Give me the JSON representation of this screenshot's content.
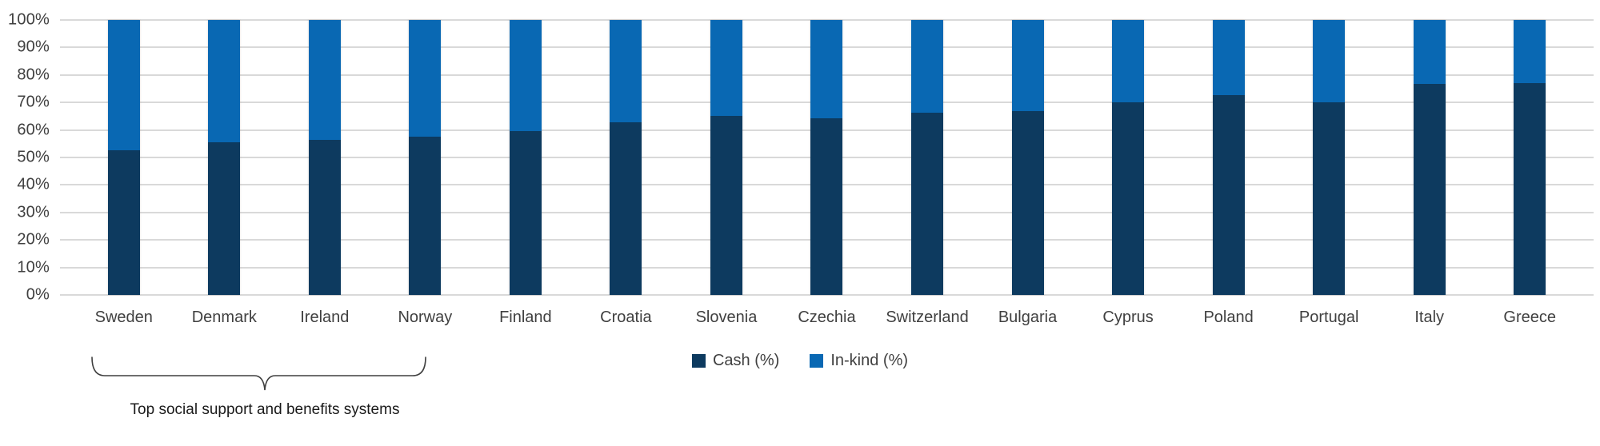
{
  "chart_data": {
    "type": "bar",
    "stacked": true,
    "stacked_100_percent": true,
    "title": "",
    "xlabel": "",
    "ylabel": "",
    "ylim": [
      0,
      100
    ],
    "y_ticks": [
      "100%",
      "90%",
      "80%",
      "70%",
      "60%",
      "50%",
      "40%",
      "30%",
      "20%",
      "10%",
      "0%"
    ],
    "grid": "horizontal",
    "legend_position": "bottom-center",
    "categories": [
      "Sweden",
      "Denmark",
      "Ireland",
      "Norway",
      "Finland",
      "Croatia",
      "Slovenia",
      "Czechia",
      "Switzerland",
      "Bulgaria",
      "Cyprus",
      "Poland",
      "Portugal",
      "Italy",
      "Greece"
    ],
    "series": [
      {
        "name": "Cash (%)",
        "color": "#0d3a5f",
        "values": [
          52.7,
          55.5,
          56.4,
          57.5,
          59.7,
          62.7,
          65.0,
          64.1,
          66.3,
          66.8,
          70.1,
          72.6,
          70.1,
          76.8,
          77.0
        ]
      },
      {
        "name": "In-kind (%)",
        "color": "#0968b3",
        "values": [
          47.3,
          44.5,
          43.6,
          42.5,
          40.3,
          37.3,
          35.0,
          35.9,
          33.7,
          33.2,
          29.9,
          27.4,
          29.9,
          23.2,
          23.0
        ]
      }
    ]
  },
  "legend": {
    "items": [
      {
        "label": "Cash (%)",
        "color": "#0d3a5f"
      },
      {
        "label": "In-kind (%)",
        "color": "#0968b3"
      }
    ]
  },
  "annotation": {
    "label": "Top social support and benefits systems",
    "bracket_categories": [
      "Sweden",
      "Denmark",
      "Ireland",
      "Norway",
      "Finland"
    ]
  },
  "colors": {
    "cash": "#0d3a5f",
    "in_kind": "#0968b3",
    "gridline": "#d9d9d9",
    "axis_text": "#404040",
    "annotation_text": "#1a1a1a",
    "background": "#ffffff"
  }
}
